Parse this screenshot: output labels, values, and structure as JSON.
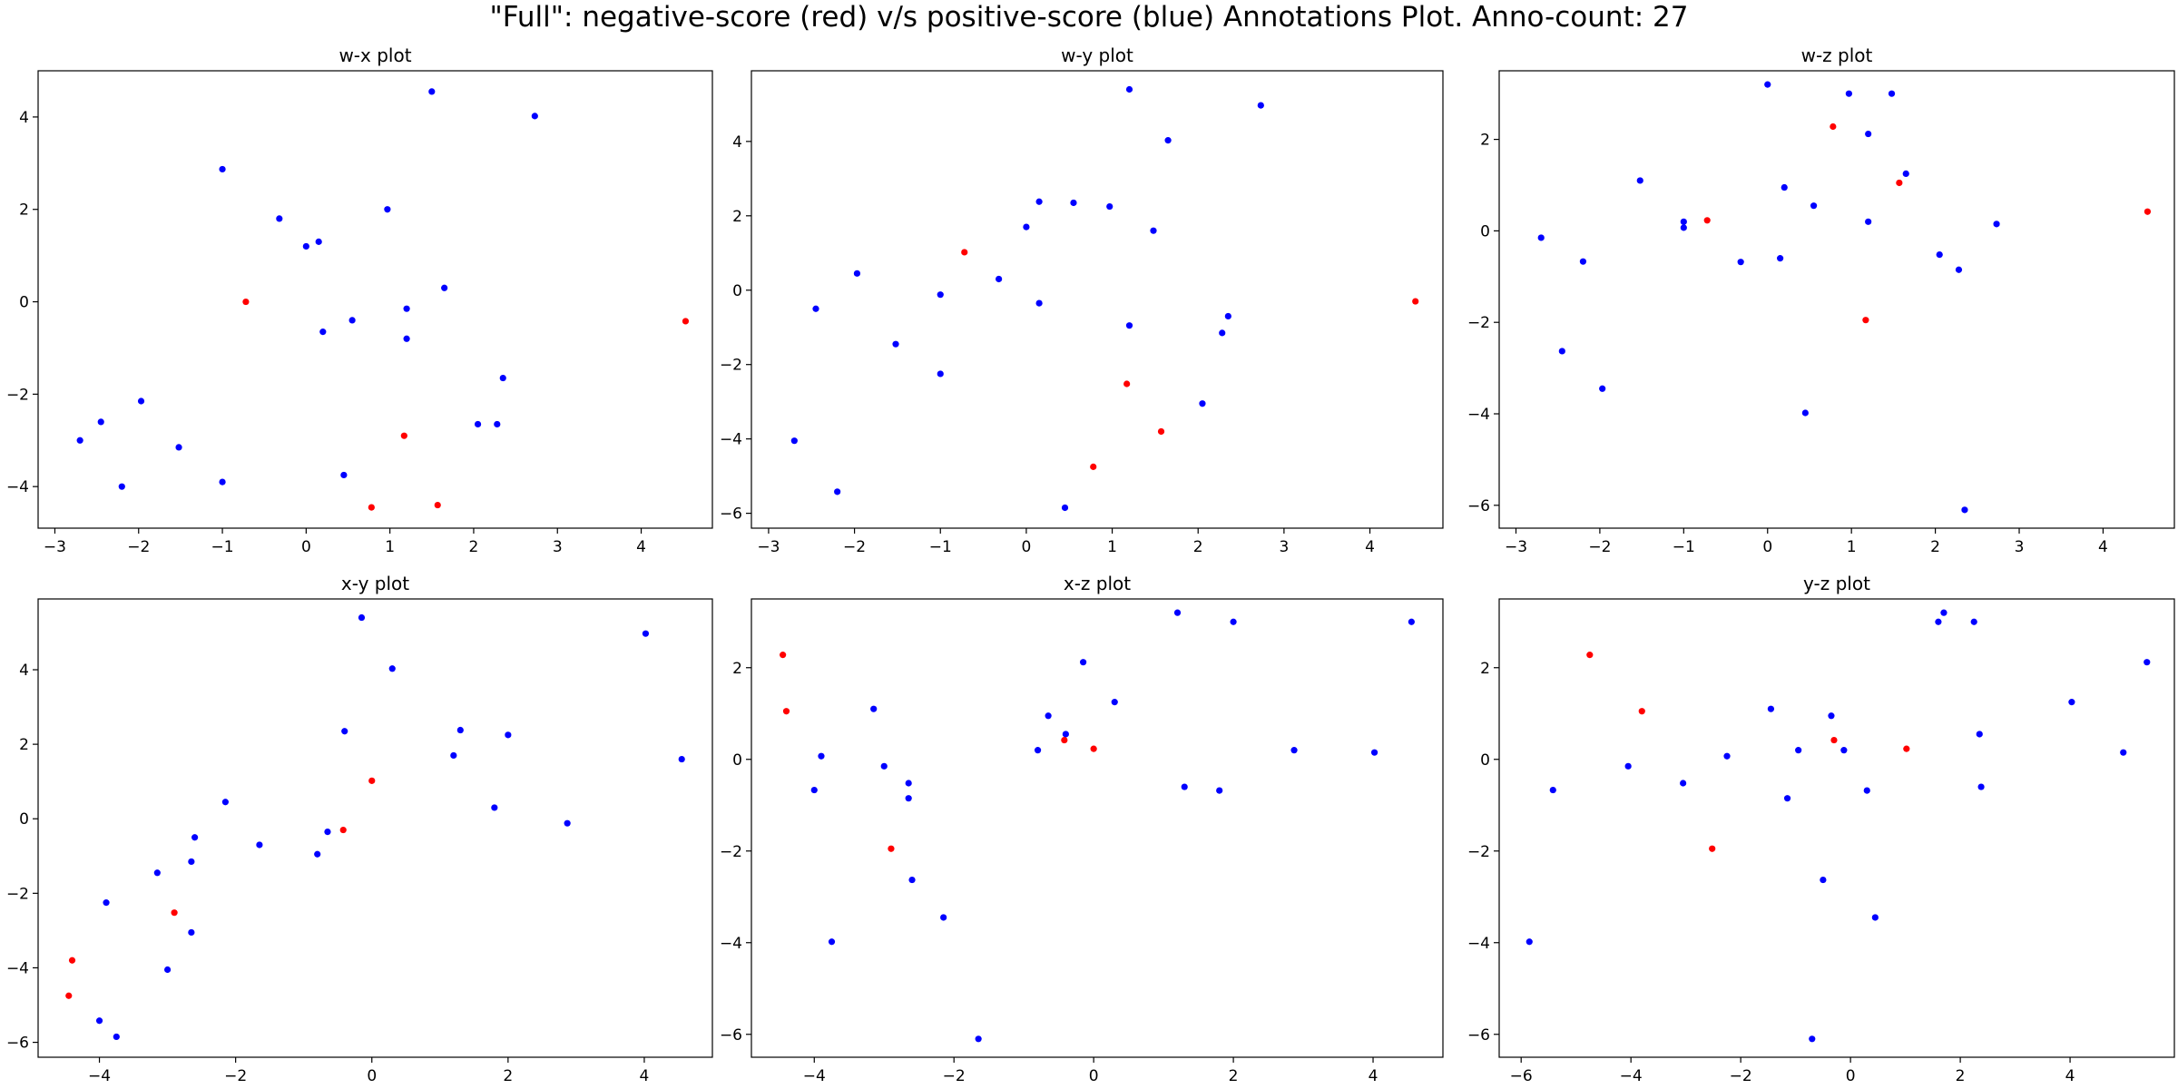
{
  "figure": {
    "suptitle": "\"Full\": negative-score (red) v/s positive-score (blue) Annotations Plot. Anno-count: 27",
    "colors": {
      "negative": "#ff0000",
      "positive": "#0000ff",
      "axes": "#000000",
      "background": "#ffffff"
    }
  },
  "chart_data": [
    {
      "type": "scatter",
      "title": "w-x plot",
      "xlim": [
        -3.2,
        4.85
      ],
      "ylim": [
        -4.9,
        5.0
      ],
      "xticks": [
        -3,
        -2,
        -1,
        0,
        1,
        2,
        3,
        4
      ],
      "yticks": [
        -4,
        -2,
        0,
        2,
        4
      ],
      "series": [
        {
          "color": "#0000ff",
          "points": [
            [
              -2.7,
              -3.0
            ],
            [
              -2.45,
              -2.6
            ],
            [
              -2.2,
              -4.0
            ],
            [
              -1.97,
              -2.15
            ],
            [
              -1.52,
              -3.15
            ],
            [
              -1.0,
              2.87
            ],
            [
              -1.0,
              -3.9
            ],
            [
              -0.32,
              1.8
            ],
            [
              0.0,
              1.2
            ],
            [
              0.15,
              1.3
            ],
            [
              0.2,
              -0.65
            ],
            [
              0.45,
              -3.75
            ],
            [
              0.55,
              -0.4
            ],
            [
              0.97,
              2.0
            ],
            [
              1.2,
              -0.15
            ],
            [
              1.2,
              -0.8
            ],
            [
              1.5,
              4.55
            ],
            [
              1.65,
              0.3
            ],
            [
              2.05,
              -2.65
            ],
            [
              2.28,
              -2.65
            ],
            [
              2.35,
              -1.65
            ],
            [
              2.73,
              4.02
            ]
          ]
        },
        {
          "color": "#ff0000",
          "points": [
            [
              -0.72,
              0.0
            ],
            [
              0.78,
              -4.45
            ],
            [
              1.17,
              -2.9
            ],
            [
              1.57,
              -4.4
            ],
            [
              4.53,
              -0.42
            ]
          ]
        }
      ]
    },
    {
      "type": "scatter",
      "title": "w-y plot",
      "xlim": [
        -3.2,
        4.85
      ],
      "ylim": [
        -6.4,
        5.9
      ],
      "xticks": [
        -3,
        -2,
        -1,
        0,
        1,
        2,
        3,
        4
      ],
      "yticks": [
        -6,
        -4,
        -2,
        0,
        2,
        4
      ],
      "series": [
        {
          "color": "#0000ff",
          "points": [
            [
              -2.7,
              -4.05
            ],
            [
              -2.45,
              -0.5
            ],
            [
              -2.2,
              -5.42
            ],
            [
              -1.97,
              0.45
            ],
            [
              -1.52,
              -1.45
            ],
            [
              -1.0,
              -0.12
            ],
            [
              -1.0,
              -2.25
            ],
            [
              -0.32,
              0.3
            ],
            [
              0.0,
              1.7
            ],
            [
              0.15,
              2.38
            ],
            [
              0.15,
              -0.35
            ],
            [
              0.45,
              -5.85
            ],
            [
              0.55,
              2.35
            ],
            [
              0.97,
              2.25
            ],
            [
              1.2,
              5.4
            ],
            [
              1.2,
              -0.95
            ],
            [
              1.48,
              1.6
            ],
            [
              1.65,
              4.03
            ],
            [
              2.05,
              -3.05
            ],
            [
              2.28,
              -1.15
            ],
            [
              2.35,
              -0.7
            ],
            [
              2.73,
              4.97
            ]
          ]
        },
        {
          "color": "#ff0000",
          "points": [
            [
              -0.72,
              1.02
            ],
            [
              0.78,
              -4.75
            ],
            [
              1.17,
              -2.52
            ],
            [
              1.57,
              -3.8
            ],
            [
              4.53,
              -0.3
            ]
          ]
        }
      ]
    },
    {
      "type": "scatter",
      "title": "w-z plot",
      "xlim": [
        -3.2,
        4.85
      ],
      "ylim": [
        -6.5,
        3.5
      ],
      "xticks": [
        -3,
        -2,
        -1,
        0,
        1,
        2,
        3,
        4
      ],
      "yticks": [
        -6,
        -4,
        -2,
        0,
        2
      ],
      "series": [
        {
          "color": "#0000ff",
          "points": [
            [
              -2.7,
              -0.15
            ],
            [
              -2.45,
              -2.63
            ],
            [
              -2.2,
              -0.67
            ],
            [
              -1.97,
              -3.45
            ],
            [
              -1.52,
              1.1
            ],
            [
              -1.0,
              0.2
            ],
            [
              -1.0,
              0.07
            ],
            [
              -0.32,
              -0.68
            ],
            [
              0.0,
              3.2
            ],
            [
              0.15,
              -0.6
            ],
            [
              0.2,
              0.95
            ],
            [
              0.45,
              -3.98
            ],
            [
              0.55,
              0.55
            ],
            [
              0.97,
              3.0
            ],
            [
              1.2,
              2.12
            ],
            [
              1.2,
              0.2
            ],
            [
              1.48,
              3.0
            ],
            [
              1.65,
              1.25
            ],
            [
              2.05,
              -0.52
            ],
            [
              2.28,
              -0.85
            ],
            [
              2.35,
              -6.1
            ],
            [
              2.73,
              0.15
            ]
          ]
        },
        {
          "color": "#ff0000",
          "points": [
            [
              -0.72,
              0.23
            ],
            [
              0.78,
              2.28
            ],
            [
              1.17,
              -1.95
            ],
            [
              1.57,
              1.05
            ],
            [
              4.53,
              0.42
            ]
          ]
        }
      ]
    },
    {
      "type": "scatter",
      "title": "x-y plot",
      "xlim": [
        -4.9,
        5.0
      ],
      "ylim": [
        -6.4,
        5.9
      ],
      "xticks": [
        -4,
        -2,
        0,
        2,
        4
      ],
      "yticks": [
        -6,
        -4,
        -2,
        0,
        2,
        4
      ],
      "series": [
        {
          "color": "#0000ff",
          "points": [
            [
              -3.0,
              -4.05
            ],
            [
              -2.6,
              -0.5
            ],
            [
              -4.0,
              -5.42
            ],
            [
              -2.15,
              0.45
            ],
            [
              -3.15,
              -1.45
            ],
            [
              2.87,
              -0.12
            ],
            [
              -3.9,
              -2.25
            ],
            [
              1.8,
              0.3
            ],
            [
              1.2,
              1.7
            ],
            [
              1.3,
              2.38
            ],
            [
              -0.65,
              -0.35
            ],
            [
              -3.75,
              -5.85
            ],
            [
              -0.4,
              2.35
            ],
            [
              2.0,
              2.25
            ],
            [
              -0.15,
              5.4
            ],
            [
              -0.8,
              -0.95
            ],
            [
              4.55,
              1.6
            ],
            [
              0.3,
              4.03
            ],
            [
              -2.65,
              -3.05
            ],
            [
              -2.65,
              -1.15
            ],
            [
              -1.65,
              -0.7
            ],
            [
              4.02,
              4.97
            ]
          ]
        },
        {
          "color": "#ff0000",
          "points": [
            [
              0.0,
              1.02
            ],
            [
              -4.45,
              -4.75
            ],
            [
              -2.9,
              -2.52
            ],
            [
              -4.4,
              -3.8
            ],
            [
              -0.42,
              -0.3
            ]
          ]
        }
      ]
    },
    {
      "type": "scatter",
      "title": "x-z plot",
      "xlim": [
        -4.9,
        5.0
      ],
      "ylim": [
        -6.5,
        3.5
      ],
      "xticks": [
        -4,
        -2,
        0,
        2,
        4
      ],
      "yticks": [
        -6,
        -4,
        -2,
        0,
        2
      ],
      "series": [
        {
          "color": "#0000ff",
          "points": [
            [
              -3.0,
              -0.15
            ],
            [
              -2.6,
              -2.63
            ],
            [
              -4.0,
              -0.67
            ],
            [
              -2.15,
              -3.45
            ],
            [
              -3.15,
              1.1
            ],
            [
              2.87,
              0.2
            ],
            [
              -3.9,
              0.07
            ],
            [
              1.8,
              -0.68
            ],
            [
              1.2,
              3.2
            ],
            [
              1.3,
              -0.6
            ],
            [
              -0.65,
              0.95
            ],
            [
              -3.75,
              -3.98
            ],
            [
              -0.4,
              0.55
            ],
            [
              2.0,
              3.0
            ],
            [
              -0.15,
              2.12
            ],
            [
              -0.8,
              0.2
            ],
            [
              4.55,
              3.0
            ],
            [
              0.3,
              1.25
            ],
            [
              -2.65,
              -0.52
            ],
            [
              -2.65,
              -0.85
            ],
            [
              -1.65,
              -6.1
            ],
            [
              4.02,
              0.15
            ]
          ]
        },
        {
          "color": "#ff0000",
          "points": [
            [
              0.0,
              0.23
            ],
            [
              -4.45,
              2.28
            ],
            [
              -2.9,
              -1.95
            ],
            [
              -4.4,
              1.05
            ],
            [
              -0.42,
              0.42
            ]
          ]
        }
      ]
    },
    {
      "type": "scatter",
      "title": "y-z plot",
      "xlim": [
        -6.4,
        5.9
      ],
      "ylim": [
        -6.5,
        3.5
      ],
      "xticks": [
        -6,
        -4,
        -2,
        0,
        2,
        4
      ],
      "yticks": [
        -6,
        -4,
        -2,
        0,
        2
      ],
      "series": [
        {
          "color": "#0000ff",
          "points": [
            [
              -4.05,
              -0.15
            ],
            [
              -0.5,
              -2.63
            ],
            [
              -5.42,
              -0.67
            ],
            [
              0.45,
              -3.45
            ],
            [
              -1.45,
              1.1
            ],
            [
              -0.12,
              0.2
            ],
            [
              -2.25,
              0.07
            ],
            [
              0.3,
              -0.68
            ],
            [
              1.7,
              3.2
            ],
            [
              2.38,
              -0.6
            ],
            [
              -0.35,
              0.95
            ],
            [
              -5.85,
              -3.98
            ],
            [
              2.35,
              0.55
            ],
            [
              2.25,
              3.0
            ],
            [
              5.4,
              2.12
            ],
            [
              -0.95,
              0.2
            ],
            [
              1.6,
              3.0
            ],
            [
              4.03,
              1.25
            ],
            [
              -3.05,
              -0.52
            ],
            [
              -1.15,
              -0.85
            ],
            [
              -0.7,
              -6.1
            ],
            [
              4.97,
              0.15
            ]
          ]
        },
        {
          "color": "#ff0000",
          "points": [
            [
              1.02,
              0.23
            ],
            [
              -4.75,
              2.28
            ],
            [
              -2.52,
              -1.95
            ],
            [
              -3.8,
              1.05
            ],
            [
              -0.3,
              0.42
            ]
          ]
        }
      ]
    }
  ]
}
